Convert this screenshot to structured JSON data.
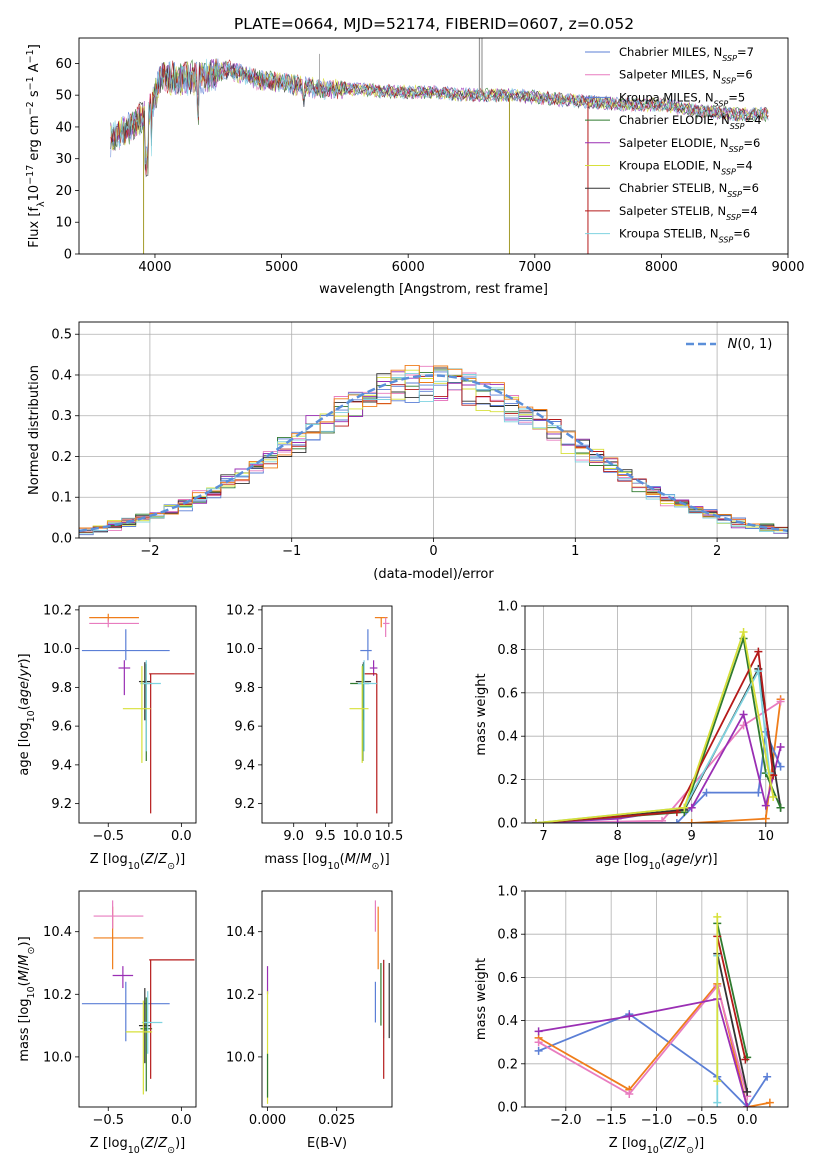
{
  "figure_title": "PLATE=0664, MJD=52174, FIBERID=0607, z=0.052",
  "model_colors": {
    "chabrier_miles": "#5b7fd6",
    "salpeter_miles": "#e87cbf",
    "kroupa_miles": "#5b7fd6",
    "chabrier_elodie": "#2f7a2f",
    "salpeter_elodie": "#9a2fb4",
    "kroupa_elodie": "#d7e03a",
    "chabrier_stelib": "#333333",
    "salpeter_stelib": "#b51a1a",
    "kroupa_stelib": "#7fd3e0"
  },
  "chart_data": [
    {
      "id": "spectrum",
      "type": "line",
      "xlabel": "wavelength [Angstrom, rest frame]",
      "ylabel": "Flux [f_λ 10^-17 erg cm^-2 s^-1 A^-1]",
      "xlim": [
        3400,
        9000
      ],
      "ylim": [
        0,
        68
      ],
      "xticks": [
        4000,
        5000,
        6000,
        7000,
        8000,
        9000
      ],
      "yticks": [
        0,
        10,
        20,
        30,
        40,
        50,
        60
      ],
      "grid": false,
      "legend_position": "top-right",
      "legend": [
        {
          "name": "Chabrier MILES, N",
          "sub": "SSP",
          "tail": "=7",
          "color": "#5b7fd6"
        },
        {
          "name": "Salpeter MILES, N",
          "sub": "SSP",
          "tail": "=6",
          "color": "#e87cbf"
        },
        {
          "name": "Kroupa MILES, N",
          "sub": "SSP",
          "tail": "=5",
          "color": "#5b7fd6"
        },
        {
          "name": "Chabrier ELODIE, N",
          "sub": "SSP",
          "tail": "=4",
          "color": "#2f7a2f"
        },
        {
          "name": "Salpeter ELODIE, N",
          "sub": "SSP",
          "tail": "=6",
          "color": "#9a2fb4"
        },
        {
          "name": "Kroupa ELODIE, N",
          "sub": "SSP",
          "tail": "=4",
          "color": "#d7e03a"
        },
        {
          "name": "Chabrier STELIB, N",
          "sub": "SSP",
          "tail": "=6",
          "color": "#333333"
        },
        {
          "name": "Salpeter STELIB, N",
          "sub": "SSP",
          "tail": "=4",
          "color": "#b51a1a"
        },
        {
          "name": "Kroupa STELIB, N",
          "sub": "SSP",
          "tail": "=6",
          "color": "#7fd3e0"
        }
      ],
      "data_trend": {
        "x": [
          3650,
          3800,
          3950,
          4050,
          4200,
          4400,
          4600,
          4800,
          5000,
          5300,
          5600,
          5900,
          6200,
          6500,
          6800,
          7100,
          7400,
          7700,
          8000,
          8300,
          8600,
          8850
        ],
        "y": [
          36,
          40,
          44,
          56,
          55,
          56,
          58,
          55,
          54,
          52,
          52,
          51,
          51,
          50,
          50,
          49,
          48,
          47,
          47,
          45,
          44,
          44
        ]
      }
    },
    {
      "id": "residuals",
      "type": "line",
      "xlabel": "(data-model)/error",
      "ylabel": "Normed distribution",
      "xlim": [
        -2.5,
        2.5
      ],
      "ylim": [
        0,
        0.53
      ],
      "xticks": [
        -2,
        -1,
        0,
        1,
        2
      ],
      "yticks": [
        0.0,
        0.1,
        0.2,
        0.3,
        0.4,
        0.5
      ],
      "grid": true,
      "legend_position": "top-right",
      "legend_label": "N(0, 1)",
      "gaussian": {
        "mean": 0,
        "sigma": 1
      }
    },
    {
      "id": "age_vs_Z",
      "type": "scatter",
      "xlabel": "Z [log10(Z/Z⊙)]",
      "ylabel": "age  [log10(age/yr)]",
      "xlim": [
        -0.7,
        0.1
      ],
      "ylim": [
        9.1,
        10.22
      ],
      "xticks": [
        -0.5,
        0.0
      ],
      "yticks": [
        9.2,
        9.4,
        9.6,
        9.8,
        10.0,
        10.2
      ],
      "points": [
        {
          "x": -0.5,
          "y": 10.16,
          "xl": 0.13,
          "xh": 0.21,
          "yl": 0.02,
          "yh": 0.02,
          "color": "#ef7d1a"
        },
        {
          "x": -0.5,
          "y": 10.13,
          "xl": 0.13,
          "xh": 0.21,
          "yl": 0.02,
          "yh": 0.02,
          "color": "#e87cbf"
        },
        {
          "x": -0.38,
          "y": 9.99,
          "xl": 0.3,
          "xh": 0.3,
          "yl": 0.05,
          "yh": 0.11,
          "color": "#5b7fd6"
        },
        {
          "x": -0.39,
          "y": 9.9,
          "xl": 0.04,
          "xh": 0.04,
          "yl": 0.14,
          "yh": 0.04,
          "color": "#9a2fb4"
        },
        {
          "x": -0.25,
          "y": 9.83,
          "xl": 0.04,
          "xh": 0.04,
          "yl": 0.2,
          "yh": 0.1,
          "color": "#333333"
        },
        {
          "x": -0.24,
          "y": 9.82,
          "xl": 0.04,
          "xh": 0.04,
          "yl": 0.4,
          "yh": 0.1,
          "color": "#2f7a2f"
        },
        {
          "x": -0.21,
          "y": 9.87,
          "xl": 0.01,
          "xh": 0.3,
          "yl": 0.72,
          "yh": 0.0,
          "color": "#b51a1a"
        },
        {
          "x": -0.24,
          "y": 9.82,
          "xl": 0.04,
          "xh": 0.1,
          "yl": 0.35,
          "yh": 0.12,
          "color": "#7fd3e0"
        },
        {
          "x": -0.27,
          "y": 9.69,
          "xl": 0.13,
          "xh": 0.06,
          "yl": 0.28,
          "yh": 0.22,
          "color": "#d7e03a"
        }
      ]
    },
    {
      "id": "age_vs_mass",
      "type": "scatter",
      "xlabel": "mass [log10(M/M⊙)]",
      "ylabel": "",
      "xlim": [
        8.5,
        10.55
      ],
      "ylim": [
        9.1,
        10.22
      ],
      "xticks": [
        9.0,
        9.5,
        10.0,
        10.5
      ],
      "yticks": [
        9.2,
        9.4,
        9.6,
        9.8,
        10.0,
        10.2
      ],
      "points": [
        {
          "x": 10.38,
          "y": 10.16,
          "xl": 0.1,
          "xh": 0.1,
          "yl": 0.05,
          "yh": 0.0,
          "color": "#ef7d1a"
        },
        {
          "x": 10.45,
          "y": 10.13,
          "xl": 0.04,
          "xh": 0.06,
          "yl": 0.07,
          "yh": 0.03,
          "color": "#e87cbf"
        },
        {
          "x": 10.17,
          "y": 9.99,
          "xl": 0.12,
          "xh": 0.06,
          "yl": 0.05,
          "yh": 0.11,
          "color": "#5b7fd6"
        },
        {
          "x": 10.26,
          "y": 9.9,
          "xl": 0.06,
          "xh": 0.06,
          "yl": 0.04,
          "yh": 0.04,
          "color": "#9a2fb4"
        },
        {
          "x": 10.1,
          "y": 9.83,
          "xl": 0.12,
          "xh": 0.12,
          "yl": 0.2,
          "yh": 0.1,
          "color": "#333333"
        },
        {
          "x": 10.09,
          "y": 9.82,
          "xl": 0.2,
          "xh": 0.1,
          "yl": 0.4,
          "yh": 0.1,
          "color": "#2f7a2f"
        },
        {
          "x": 10.31,
          "y": 9.87,
          "xl": 0.21,
          "xh": 0.0,
          "yl": 0.72,
          "yh": 0.0,
          "color": "#b51a1a"
        },
        {
          "x": 10.11,
          "y": 9.82,
          "xl": 0.1,
          "xh": 0.2,
          "yl": 0.35,
          "yh": 0.12,
          "color": "#7fd3e0"
        },
        {
          "x": 10.08,
          "y": 9.69,
          "xl": 0.2,
          "xh": 0.1,
          "yl": 0.28,
          "yh": 0.22,
          "color": "#d7e03a"
        }
      ]
    },
    {
      "id": "weight_vs_age",
      "type": "line",
      "xlabel": "age  [log10(age/yr)]",
      "ylabel": "mass weight",
      "xlim": [
        6.75,
        10.3
      ],
      "ylim": [
        0,
        1.0
      ],
      "xticks": [
        7,
        8,
        9,
        10
      ],
      "yticks": [
        0.0,
        0.2,
        0.4,
        0.6,
        0.8,
        1.0
      ],
      "grid": true,
      "series": [
        {
          "color": "#ef7d1a",
          "x": [
            6.9,
            9.0,
            10.0,
            10.2
          ],
          "y": [
            0.0,
            0.0,
            0.02,
            0.57
          ]
        },
        {
          "color": "#e87cbf",
          "x": [
            6.9,
            8.6,
            9.7,
            10.2
          ],
          "y": [
            0.0,
            0.01,
            0.45,
            0.56
          ]
        },
        {
          "color": "#5b7fd6",
          "x": [
            6.9,
            8.8,
            9.2,
            9.9,
            10.0,
            10.2
          ],
          "y": [
            0.0,
            0.0,
            0.14,
            0.14,
            0.42,
            0.26
          ]
        },
        {
          "color": "#9a2fb4",
          "x": [
            6.9,
            8.0,
            9.0,
            9.7,
            10.0,
            10.2
          ],
          "y": [
            0.0,
            0.02,
            0.07,
            0.5,
            0.08,
            0.35
          ]
        },
        {
          "color": "#333333",
          "x": [
            6.9,
            8.9,
            9.9,
            10.2
          ],
          "y": [
            0.0,
            0.06,
            0.71,
            0.07
          ]
        },
        {
          "color": "#2f7a2f",
          "x": [
            6.9,
            8.9,
            9.7,
            10.0,
            10.2
          ],
          "y": [
            0.0,
            0.05,
            0.85,
            0.23,
            0.07
          ]
        },
        {
          "color": "#b51a1a",
          "x": [
            6.9,
            8.8,
            9.9,
            10.1
          ],
          "y": [
            0.0,
            0.05,
            0.79,
            0.22
          ]
        },
        {
          "color": "#7fd3e0",
          "x": [
            6.9,
            8.9,
            9.9,
            10.05
          ],
          "y": [
            0.0,
            0.07,
            0.7,
            0.23
          ]
        },
        {
          "color": "#d7e03a",
          "x": [
            6.9,
            8.9,
            9.7,
            10.1
          ],
          "y": [
            0.0,
            0.07,
            0.88,
            0.12
          ]
        }
      ]
    },
    {
      "id": "mass_vs_Z",
      "type": "scatter",
      "xlabel": "Z [log10(Z/Z⊙)]",
      "ylabel": "mass [log10(M/M⊙)]",
      "xlim": [
        -0.7,
        0.1
      ],
      "ylim": [
        9.84,
        10.53
      ],
      "xticks": [
        -0.5,
        0.0
      ],
      "yticks": [
        10.0,
        10.2,
        10.4
      ],
      "points": [
        {
          "x": -0.47,
          "y": 10.38,
          "xl": 0.13,
          "xh": 0.21,
          "yl": 0.1,
          "yh": 0.1,
          "color": "#ef7d1a"
        },
        {
          "x": -0.47,
          "y": 10.45,
          "xl": 0.13,
          "xh": 0.21,
          "yl": 0.04,
          "yh": 0.05,
          "color": "#e87cbf"
        },
        {
          "x": -0.4,
          "y": 10.26,
          "xl": 0.07,
          "xh": 0.07,
          "yl": 0.04,
          "yh": 0.03,
          "color": "#9a2fb4"
        },
        {
          "x": -0.38,
          "y": 10.17,
          "xl": 0.3,
          "xh": 0.3,
          "yl": 0.12,
          "yh": 0.07,
          "color": "#5b7fd6"
        },
        {
          "x": -0.25,
          "y": 10.1,
          "xl": 0.04,
          "xh": 0.04,
          "yl": 0.12,
          "yh": 0.12,
          "color": "#333333"
        },
        {
          "x": -0.24,
          "y": 10.09,
          "xl": 0.04,
          "xh": 0.04,
          "yl": 0.2,
          "yh": 0.1,
          "color": "#2f7a2f"
        },
        {
          "x": -0.21,
          "y": 10.31,
          "xl": 0.01,
          "xh": 0.3,
          "yl": 0.38,
          "yh": 0.0,
          "color": "#b51a1a"
        },
        {
          "x": -0.23,
          "y": 10.11,
          "xl": 0.04,
          "xh": 0.1,
          "yl": 0.1,
          "yh": 0.1,
          "color": "#7fd3e0"
        },
        {
          "x": -0.26,
          "y": 10.08,
          "xl": 0.12,
          "xh": 0.06,
          "yl": 0.2,
          "yh": 0.1,
          "color": "#d7e03a"
        }
      ]
    },
    {
      "id": "mass_vs_ebv",
      "type": "scatter",
      "xlabel": "E(B-V)",
      "ylabel": "",
      "xlim": [
        -0.002,
        0.045
      ],
      "ylim": [
        9.84,
        10.53
      ],
      "xticks": [
        0.0,
        0.025
      ],
      "xtick_labels": [
        "0.000",
        "0.025"
      ],
      "yticks": [
        10.0,
        10.2,
        10.4
      ],
      "points": [
        {
          "x": 0.0,
          "y": 10.25,
          "yl": 0.05,
          "yh": 0.04,
          "color": "#9a2fb4"
        },
        {
          "x": 0.0,
          "y": 10.05,
          "yl": 0.2,
          "yh": 0.16,
          "color": "#d7e03a"
        },
        {
          "x": 0.0,
          "y": 9.95,
          "yl": 0.08,
          "yh": 0.06,
          "color": "#2f7a2f"
        },
        {
          "x": 0.039,
          "y": 10.45,
          "yl": 0.05,
          "yh": 0.05,
          "color": "#e87cbf"
        },
        {
          "x": 0.04,
          "y": 10.38,
          "yl": 0.1,
          "yh": 0.1,
          "color": "#ef7d1a"
        },
        {
          "x": 0.039,
          "y": 10.18,
          "yl": 0.07,
          "yh": 0.06,
          "color": "#5b7fd6"
        },
        {
          "x": 0.041,
          "y": 10.2,
          "yl": 0.1,
          "yh": 0.1,
          "color": "#2f7a2f"
        },
        {
          "x": 0.042,
          "y": 10.16,
          "yl": 0.1,
          "yh": 0.15,
          "color": "#7fd3e0"
        },
        {
          "x": 0.042,
          "y": 10.13,
          "yl": 0.2,
          "yh": 0.18,
          "color": "#b51a1a"
        },
        {
          "x": 0.044,
          "y": 10.18,
          "yl": 0.12,
          "yh": 0.12,
          "color": "#333333"
        }
      ]
    },
    {
      "id": "weight_vs_Z",
      "type": "line",
      "xlabel": "Z [log10(Z/Z⊙)]",
      "ylabel": "mass weight",
      "xlim": [
        -2.45,
        0.45
      ],
      "ylim": [
        0,
        1.0
      ],
      "xticks": [
        -2.0,
        -1.5,
        -1.0,
        -0.5,
        0.0
      ],
      "yticks": [
        0.0,
        0.2,
        0.4,
        0.6,
        0.8,
        1.0
      ],
      "grid": true,
      "series": [
        {
          "color": "#5b7fd6",
          "x": [
            -2.3,
            -1.3,
            -0.33,
            0.0,
            0.22
          ],
          "y": [
            0.26,
            0.43,
            0.14,
            0.0,
            0.14
          ]
        },
        {
          "color": "#ef7d1a",
          "x": [
            -2.3,
            -1.3,
            -0.33,
            0.0,
            0.25
          ],
          "y": [
            0.32,
            0.08,
            0.57,
            0.0,
            0.02
          ]
        },
        {
          "color": "#e87cbf",
          "x": [
            -2.3,
            -1.3,
            -0.33,
            0.0
          ],
          "y": [
            0.3,
            0.06,
            0.56,
            0.05
          ]
        },
        {
          "color": "#9a2fb4",
          "x": [
            -2.3,
            -1.3,
            -0.33,
            0.0
          ],
          "y": [
            0.35,
            0.42,
            0.5,
            0.0
          ]
        },
        {
          "color": "#333333",
          "x": [
            -0.33,
            0.0
          ],
          "y": [
            0.71,
            0.07
          ]
        },
        {
          "color": "#2f7a2f",
          "x": [
            -0.33,
            0.0
          ],
          "y": [
            0.85,
            0.23
          ]
        },
        {
          "color": "#b51a1a",
          "x": [
            -0.33,
            -0.02
          ],
          "y": [
            0.79,
            0.22
          ]
        },
        {
          "color": "#7fd3e0",
          "x": [
            -0.33,
            -0.33
          ],
          "y": [
            0.7,
            0.02
          ]
        },
        {
          "color": "#d7e03a",
          "x": [
            -0.33,
            -0.33
          ],
          "y": [
            0.88,
            0.12
          ]
        }
      ]
    }
  ]
}
